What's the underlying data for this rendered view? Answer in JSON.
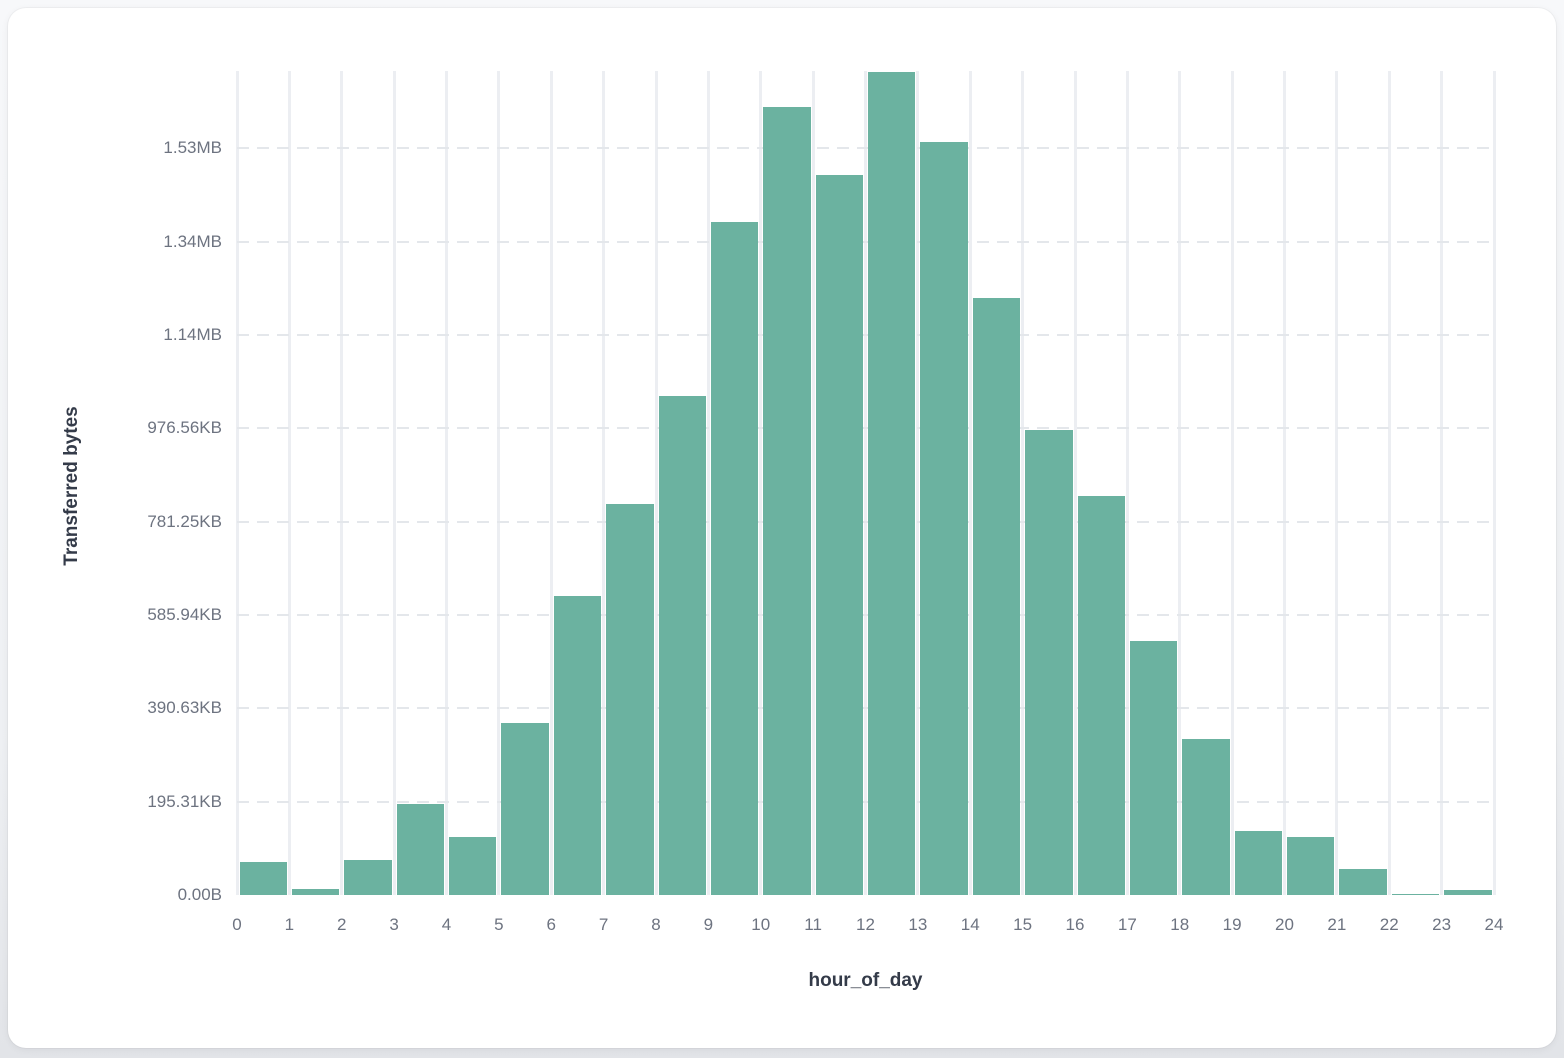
{
  "chart_data": {
    "type": "bar",
    "title": "",
    "xlabel": "hour_of_day",
    "ylabel": "Transferred bytes",
    "categories": [
      0,
      1,
      2,
      3,
      4,
      5,
      6,
      7,
      8,
      9,
      10,
      11,
      12,
      13,
      14,
      15,
      16,
      17,
      18,
      19,
      20,
      21,
      22,
      23
    ],
    "values_bytes": [
      70000,
      13000,
      75000,
      195000,
      124000,
      368000,
      641000,
      838000,
      1069000,
      1442000,
      1688000,
      1543000,
      1764000,
      1613000,
      1280000,
      996000,
      855000,
      545000,
      334000,
      137000,
      124000,
      56000,
      3000,
      11000
    ],
    "x_ticks": [
      "0",
      "1",
      "2",
      "3",
      "4",
      "5",
      "6",
      "7",
      "8",
      "9",
      "10",
      "11",
      "12",
      "13",
      "14",
      "15",
      "16",
      "17",
      "18",
      "19",
      "20",
      "21",
      "22",
      "23",
      "24"
    ],
    "y_ticks": [
      {
        "label": "0.00B",
        "bytes": 0
      },
      {
        "label": "195.31KB",
        "bytes": 200000
      },
      {
        "label": "390.63KB",
        "bytes": 400000
      },
      {
        "label": "585.94KB",
        "bytes": 600000
      },
      {
        "label": "781.25KB",
        "bytes": 800000
      },
      {
        "label": "976.56KB",
        "bytes": 1000000
      },
      {
        "label": "1.14MB",
        "bytes": 1200000
      },
      {
        "label": "1.34MB",
        "bytes": 1400000
      },
      {
        "label": "1.53MB",
        "bytes": 1600000
      }
    ],
    "ylim": [
      0,
      1766000
    ],
    "xlim": [
      0,
      24
    ],
    "grid": {
      "vertical": "solid",
      "horizontal": "dashed"
    },
    "legend": "none",
    "bar_color": "#6bb2a0"
  },
  "colors": {
    "bar": "#6bb2a0",
    "vertical_grid": "#eceef2",
    "horizontal_grid": "#e4e7eb",
    "tick_label": "#6d7380",
    "axis_title": "#343b49",
    "card_background": "#ffffff",
    "page_background": "#eef0f3"
  }
}
